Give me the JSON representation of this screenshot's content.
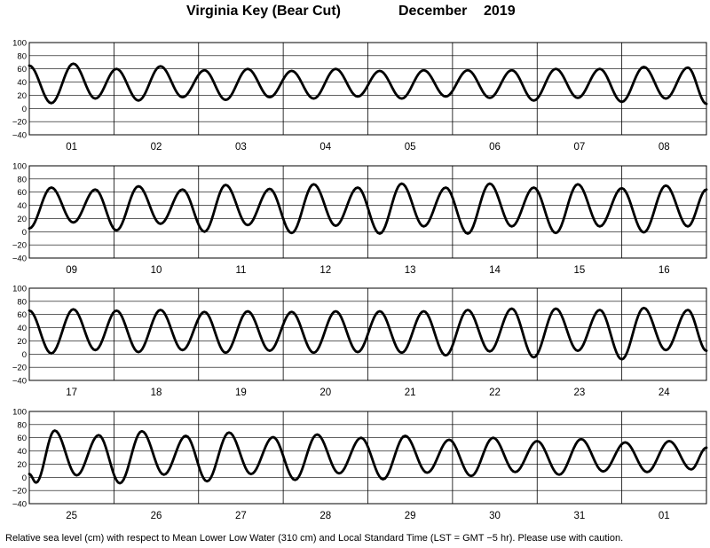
{
  "header": {
    "station": "Virginia Key (Bear Cut)",
    "month": "December",
    "year": "2019"
  },
  "footer": "Relative sea level (cm) with respect to Mean Lower Low Water (310 cm) and Local Standard Time (LST = GMT −5 hr). Please use with caution.",
  "chart_data": [
    {
      "type": "line",
      "days": [
        "01",
        "02",
        "03",
        "04",
        "05",
        "06",
        "07",
        "08"
      ],
      "xlim": [
        0,
        8
      ],
      "ylim": [
        -40,
        100
      ],
      "yticks": [
        100,
        80,
        60,
        40,
        20,
        0,
        -20,
        -40
      ],
      "grid": true,
      "series": [
        {
          "x": [
            0.0,
            0.26,
            0.52,
            0.78,
            1.03,
            1.29,
            1.55,
            1.81,
            2.07,
            2.32,
            2.58,
            2.84,
            3.1,
            3.36,
            3.62,
            3.88,
            4.14,
            4.4,
            4.66,
            4.92,
            5.18,
            5.44,
            5.7,
            5.96,
            6.22,
            6.48,
            6.74,
            7.0,
            7.26,
            7.52,
            7.78,
            8.0
          ],
          "y": [
            65,
            8,
            68,
            15,
            60,
            12,
            64,
            17,
            58,
            13,
            60,
            17,
            57,
            15,
            60,
            18,
            57,
            15,
            58,
            18,
            58,
            16,
            58,
            12,
            60,
            16,
            60,
            10,
            63,
            15,
            62,
            7
          ]
        }
      ]
    },
    {
      "type": "line",
      "days": [
        "09",
        "10",
        "11",
        "12",
        "13",
        "14",
        "15",
        "16"
      ],
      "xlim": [
        0,
        8
      ],
      "ylim": [
        -40,
        100
      ],
      "yticks": [
        100,
        80,
        60,
        40,
        20,
        0,
        -20,
        -40
      ],
      "grid": true,
      "series": [
        {
          "x": [
            0.0,
            0.26,
            0.52,
            0.78,
            1.03,
            1.29,
            1.55,
            1.81,
            2.07,
            2.32,
            2.58,
            2.84,
            3.1,
            3.36,
            3.62,
            3.88,
            4.14,
            4.4,
            4.66,
            4.92,
            5.18,
            5.44,
            5.7,
            5.96,
            6.22,
            6.48,
            6.74,
            7.0,
            7.26,
            7.52,
            7.78,
            8.0
          ],
          "y": [
            5,
            67,
            14,
            64,
            2,
            69,
            12,
            64,
            0,
            71,
            10,
            65,
            -2,
            72,
            9,
            67,
            -3,
            73,
            8,
            67,
            -3,
            73,
            8,
            67,
            -2,
            72,
            8,
            66,
            -1,
            70,
            8,
            64
          ]
        }
      ]
    },
    {
      "type": "line",
      "days": [
        "17",
        "18",
        "19",
        "20",
        "21",
        "22",
        "23",
        "24"
      ],
      "xlim": [
        0,
        8
      ],
      "ylim": [
        -40,
        100
      ],
      "yticks": [
        100,
        80,
        60,
        40,
        20,
        0,
        -20,
        -40
      ],
      "grid": true,
      "series": [
        {
          "x": [
            0.0,
            0.26,
            0.52,
            0.78,
            1.03,
            1.29,
            1.55,
            1.81,
            2.07,
            2.32,
            2.58,
            2.84,
            3.1,
            3.36,
            3.62,
            3.88,
            4.14,
            4.4,
            4.66,
            4.92,
            5.18,
            5.44,
            5.7,
            5.96,
            6.22,
            6.48,
            6.74,
            7.0,
            7.26,
            7.52,
            7.78,
            8.0
          ],
          "y": [
            66,
            1,
            68,
            6,
            66,
            3,
            67,
            6,
            64,
            2,
            65,
            5,
            64,
            2,
            65,
            3,
            65,
            2,
            65,
            -2,
            67,
            4,
            69,
            -5,
            69,
            5,
            67,
            -8,
            70,
            6,
            67,
            5
          ]
        }
      ]
    },
    {
      "type": "line",
      "days": [
        "25",
        "26",
        "27",
        "28",
        "29",
        "30",
        "31",
        "01"
      ],
      "xlim": [
        0,
        8
      ],
      "ylim": [
        -40,
        100
      ],
      "yticks": [
        100,
        80,
        60,
        40,
        20,
        0,
        -20,
        -40
      ],
      "grid": true,
      "series": [
        {
          "x": [
            0.0,
            0.08,
            0.3,
            0.56,
            0.82,
            1.07,
            1.33,
            1.59,
            1.85,
            2.1,
            2.36,
            2.62,
            2.88,
            3.14,
            3.4,
            3.66,
            3.92,
            4.18,
            4.44,
            4.7,
            4.96,
            5.22,
            5.48,
            5.74,
            6.0,
            6.26,
            6.52,
            6.78,
            7.04,
            7.3,
            7.56,
            7.82,
            8.0
          ],
          "y": [
            5,
            -8,
            71,
            3,
            64,
            -9,
            70,
            4,
            63,
            -6,
            68,
            5,
            61,
            -4,
            65,
            6,
            60,
            -3,
            63,
            7,
            57,
            2,
            60,
            8,
            55,
            4,
            58,
            9,
            53,
            8,
            55,
            12,
            45
          ]
        }
      ]
    }
  ]
}
